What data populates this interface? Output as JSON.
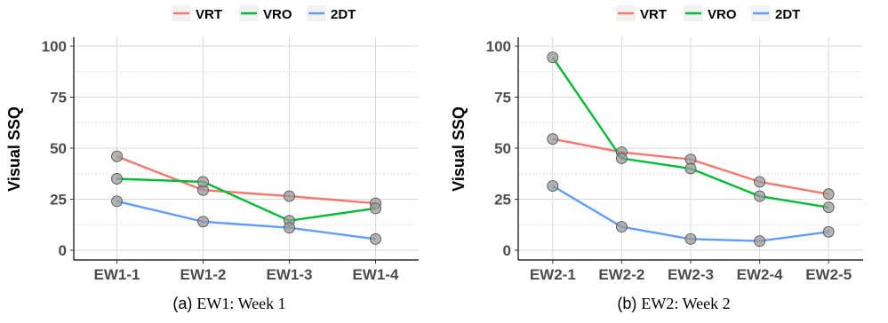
{
  "chart_data": [
    {
      "type": "line",
      "categories": [
        "EW1-1",
        "EW1-2",
        "EW1-3",
        "EW1-4"
      ],
      "ylabel": "Visual SSQ",
      "ylim": [
        0,
        100
      ],
      "yticks": [
        0,
        25,
        50,
        75,
        100
      ],
      "legend_position": "top",
      "caption_label": "(a)",
      "caption_text": "EW1: Week 1",
      "series": [
        {
          "name": "VRT",
          "color": "#f8766d",
          "values": [
            46,
            29.5,
            26.5,
            23
          ]
        },
        {
          "name": "VRO",
          "color": "#00ba38",
          "values": [
            35,
            33.5,
            14.5,
            20.5
          ]
        },
        {
          "name": "2DT",
          "color": "#619cff",
          "values": [
            24,
            14,
            11,
            5.5
          ]
        }
      ]
    },
    {
      "type": "line",
      "categories": [
        "EW2-1",
        "EW2-2",
        "EW2-3",
        "EW2-4",
        "EW2-5"
      ],
      "ylabel": "Visual SSQ",
      "ylim": [
        0,
        100
      ],
      "yticks": [
        0,
        25,
        50,
        75,
        100
      ],
      "legend_position": "top",
      "caption_label": "(b)",
      "caption_text": "EW2: Week 2",
      "series": [
        {
          "name": "VRT",
          "color": "#f8766d",
          "values": [
            54.5,
            48,
            44.5,
            33.5,
            27.5
          ]
        },
        {
          "name": "VRO",
          "color": "#00ba38",
          "values": [
            94.5,
            45,
            40,
            26.5,
            21
          ]
        },
        {
          "name": "2DT",
          "color": "#619cff",
          "values": [
            31.5,
            11.5,
            5.5,
            4.5,
            9
          ]
        }
      ]
    }
  ]
}
